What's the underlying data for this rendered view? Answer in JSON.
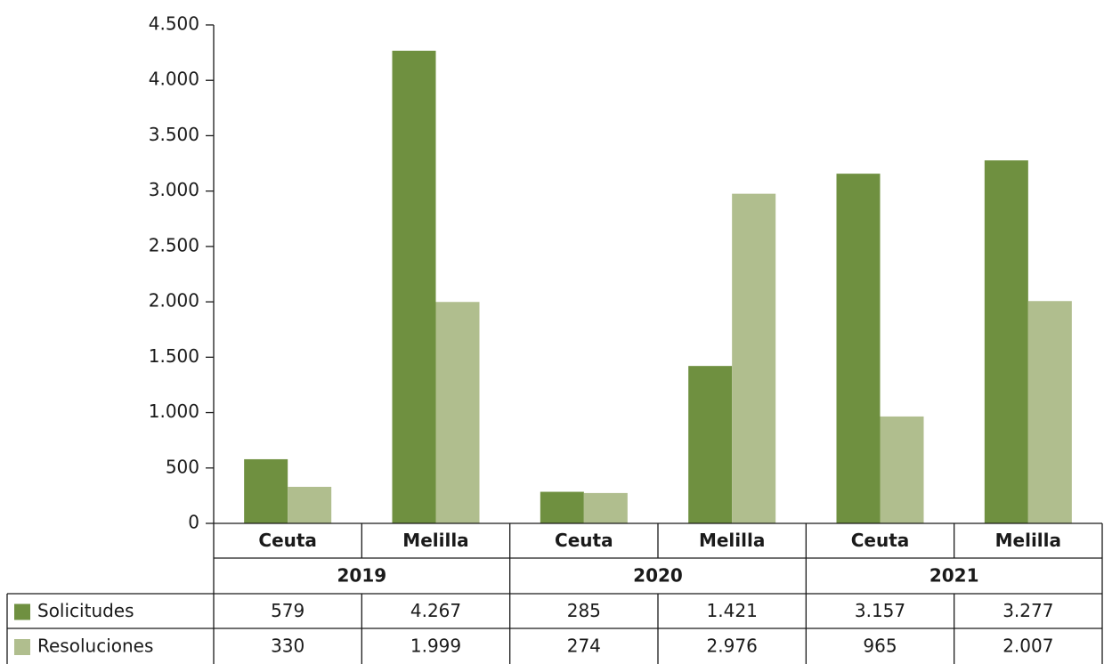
{
  "chart_data": {
    "type": "bar",
    "categories": [
      "Ceuta",
      "Melilla",
      "Ceuta",
      "Melilla",
      "Ceuta",
      "Melilla"
    ],
    "category_groups": [
      "2019",
      "2020",
      "2021"
    ],
    "series": [
      {
        "name": "Solicitudes",
        "color": "#6f9040",
        "values": [
          579,
          4267,
          285,
          1421,
          3157,
          3277
        ],
        "value_labels": [
          "579",
          "4.267",
          "285",
          "1.421",
          "3.157",
          "3.277"
        ]
      },
      {
        "name": "Resoluciones",
        "color": "#b0be8e",
        "values": [
          330,
          1999,
          274,
          2976,
          965,
          2007
        ],
        "value_labels": [
          "330",
          "1.999",
          "274",
          "2.976",
          "965",
          "2.007"
        ]
      }
    ],
    "ylim": [
      0,
      4500
    ],
    "yticks": [
      0,
      500,
      {
        "value": 1000,
        "label": "1.000"
      },
      {
        "value": 1500,
        "label": "1.500"
      },
      {
        "value": 2000,
        "label": "2.000"
      },
      {
        "value": 2500,
        "label": "2.500"
      },
      {
        "value": 3000,
        "label": "3.000"
      },
      {
        "value": 3500,
        "label": "3.500"
      },
      {
        "value": 4000,
        "label": "4.000"
      },
      {
        "value": 4500,
        "label": "4.500"
      }
    ],
    "grid": false
  }
}
